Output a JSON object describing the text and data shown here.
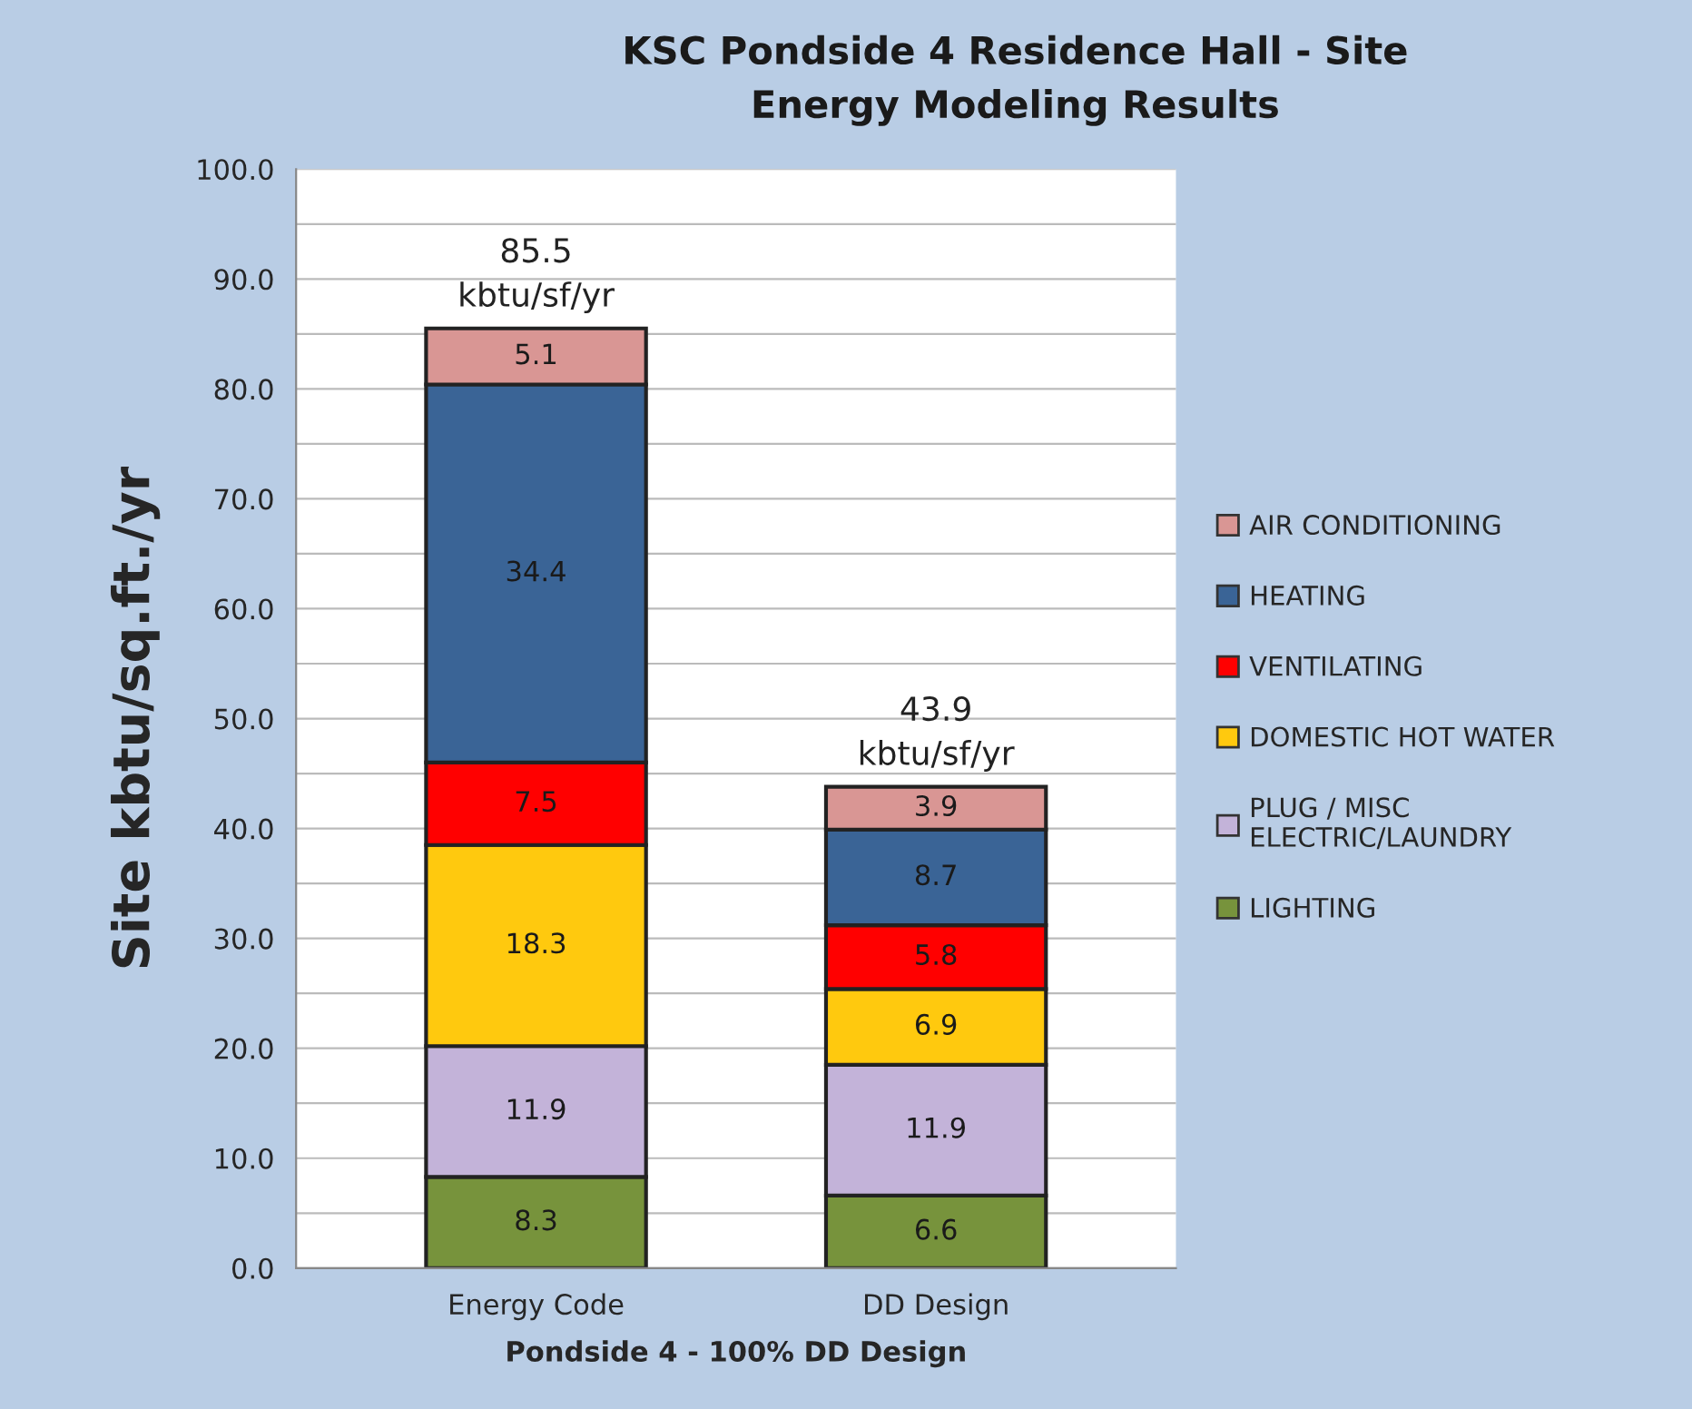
{
  "chart_data": {
    "type": "bar",
    "stacked": true,
    "title": "KSC Pondside 4 Residence Hall - Site\nEnergy Modeling Results",
    "xlabel": "Pondside 4 - 100% DD Design",
    "ylabel": "Site kbtu/sq.ft./yr",
    "categories": [
      "Energy Code",
      "DD Design"
    ],
    "series": [
      {
        "name": "LIGHTING",
        "color": "#77933c",
        "values": [
          8.3,
          6.6
        ]
      },
      {
        "name": "PLUG / MISC\nELECTRIC/LAUNDRY",
        "color": "#c3b3d9",
        "values": [
          11.9,
          11.9
        ]
      },
      {
        "name": "DOMESTIC HOT WATER",
        "color": "#ffc90e",
        "values": [
          18.3,
          6.9
        ]
      },
      {
        "name": "VENTILATING",
        "color": "#ff0000",
        "values": [
          7.5,
          5.8
        ]
      },
      {
        "name": "HEATING",
        "color": "#3a6496",
        "values": [
          34.4,
          8.7
        ]
      },
      {
        "name": "AIR CONDITIONING",
        "color": "#d99694",
        "values": [
          5.1,
          3.9
        ]
      }
    ],
    "totals": [
      "85.5\nkbtu/sf/yr",
      "43.9\nkbtu/sf/yr"
    ],
    "data_labels": true,
    "ylim": [
      0,
      100
    ],
    "yticks": [
      {
        "value": 0,
        "label": "0.0"
      },
      {
        "value": 5,
        "label": null
      },
      {
        "value": 10,
        "label": "10.0"
      },
      {
        "value": 15,
        "label": null
      },
      {
        "value": 20,
        "label": "20.0"
      },
      {
        "value": 25,
        "label": null
      },
      {
        "value": 30,
        "label": "30.0"
      },
      {
        "value": 35,
        "label": null
      },
      {
        "value": 40,
        "label": "40.0"
      },
      {
        "value": 45,
        "label": null
      },
      {
        "value": 50,
        "label": "50.0"
      },
      {
        "value": 55,
        "label": null
      },
      {
        "value": 60,
        "label": "60.0"
      },
      {
        "value": 65,
        "label": null
      },
      {
        "value": 70,
        "label": "70.0"
      },
      {
        "value": 75,
        "label": null
      },
      {
        "value": 80,
        "label": "80.0"
      },
      {
        "value": 85,
        "label": null
      },
      {
        "value": 90,
        "label": "90.0"
      },
      {
        "value": 95,
        "label": null
      },
      {
        "value": 100,
        "label": "100.0"
      }
    ],
    "grid": "y",
    "legend": "right"
  }
}
